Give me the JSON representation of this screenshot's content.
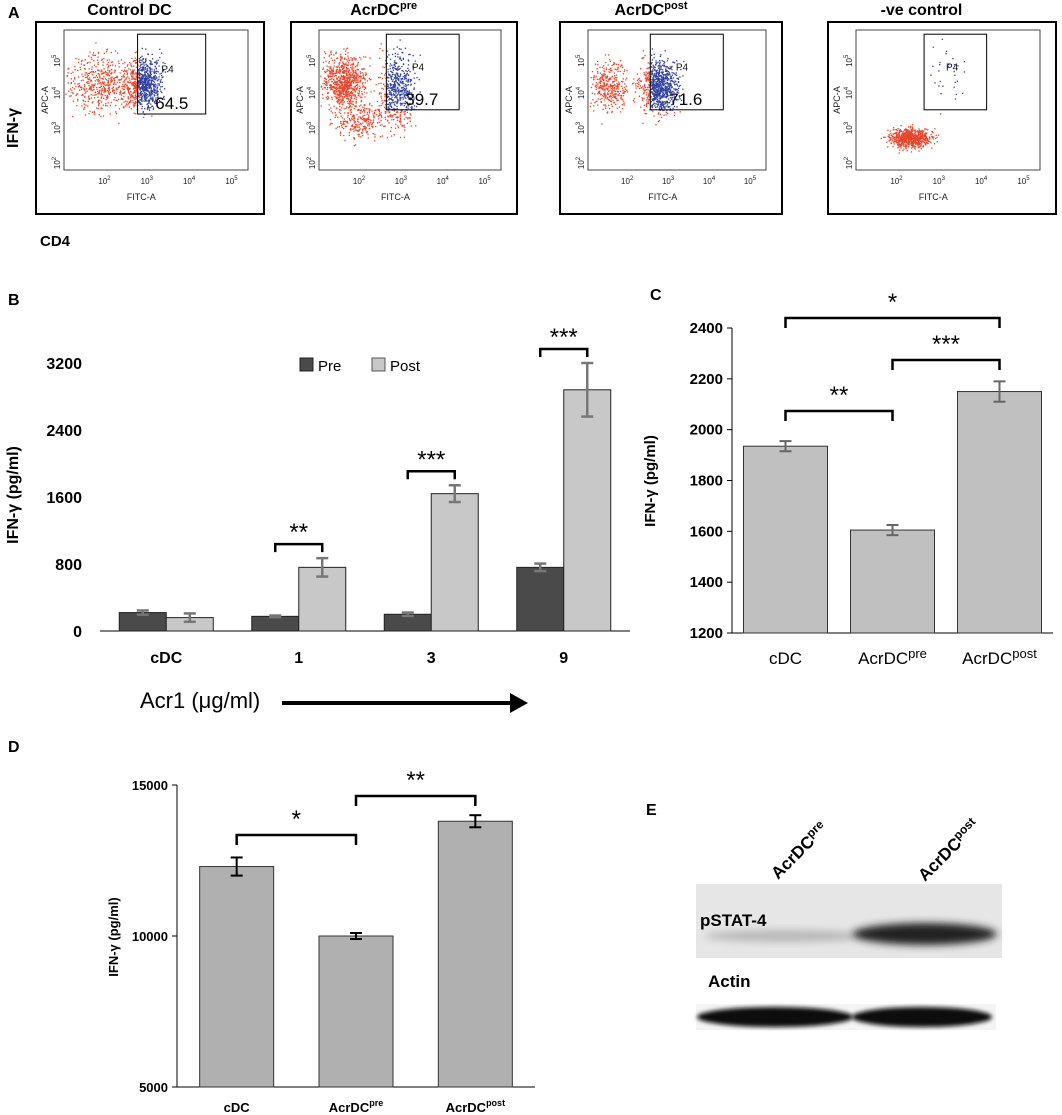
{
  "panel_labels": {
    "a": "A",
    "b": "B",
    "c": "C",
    "d": "D",
    "e": "E"
  },
  "flow": {
    "y_label": "IFN-γ",
    "x_label": "CD4",
    "plots": [
      {
        "title": "Control DC",
        "title_sup": "",
        "gate": "P4",
        "value": "64.5"
      },
      {
        "title": "AcrDC",
        "title_sup": "pre",
        "gate": "P4",
        "value": "39.7"
      },
      {
        "title": "AcrDC",
        "title_sup": "post",
        "gate": "P4",
        "value": "71.6"
      },
      {
        "title": "-ve control",
        "title_sup": "",
        "gate": "P4",
        "value": ""
      }
    ],
    "axis_x": "FITC-A",
    "axis_y": "APC-A",
    "ticks": [
      "10",
      "10",
      "10",
      "10"
    ],
    "tick_exps": [
      "2",
      "3",
      "4",
      "5"
    ],
    "colors": {
      "outside": "#e8452a",
      "inside": "#2f3fa0"
    }
  },
  "chart_data": [
    {
      "id": "B",
      "type": "bar",
      "title": "",
      "xlabel": "Acr1 (μg/ml)",
      "ylabel": "IFN-γ (pg/ml)",
      "categories": [
        "cDC",
        "1",
        "3",
        "9"
      ],
      "series": [
        {
          "name": "Pre",
          "color": "#4a4a4a",
          "values": [
            220,
            175,
            200,
            760
          ],
          "errors": [
            25,
            10,
            20,
            45
          ]
        },
        {
          "name": "Post",
          "color": "#c8c8c8",
          "values": [
            160,
            760,
            1640,
            2880
          ],
          "errors": [
            50,
            110,
            100,
            320
          ]
        }
      ],
      "ylim": [
        0,
        3200
      ],
      "yticks": [
        "0",
        "800",
        "1600",
        "2400",
        "3200"
      ],
      "significance": [
        "",
        "**",
        "***",
        "***"
      ],
      "legend_position": "top"
    },
    {
      "id": "C",
      "type": "bar",
      "title": "",
      "xlabel": "",
      "ylabel": "IFN-γ (pg/ml)",
      "categories": [
        "cDC",
        "AcrDC",
        "AcrDC"
      ],
      "category_sups": [
        "",
        "pre",
        "post"
      ],
      "values": [
        1935,
        1605,
        2150
      ],
      "errors": [
        20,
        20,
        40
      ],
      "color": "#c0c0c0",
      "ylim": [
        1200,
        2400
      ],
      "yticks": [
        "1200",
        "1400",
        "1600",
        "1800",
        "2000",
        "2200",
        "2400"
      ],
      "comparisons": [
        {
          "from": 0,
          "to": 1,
          "label": "**"
        },
        {
          "from": 1,
          "to": 2,
          "label": "***"
        },
        {
          "from": 0,
          "to": 2,
          "label": "*"
        }
      ]
    },
    {
      "id": "D",
      "type": "bar",
      "title": "",
      "xlabel": "",
      "ylabel": "IFN-γ (pg/ml)",
      "categories": [
        "cDC",
        "AcrDC",
        "AcrDC"
      ],
      "category_sups": [
        "",
        "pre",
        "post"
      ],
      "values": [
        12300,
        10000,
        13800
      ],
      "errors": [
        300,
        100,
        200
      ],
      "color": "#b0b0b0",
      "ylim": [
        5000,
        15000
      ],
      "yticks": [
        "5000",
        "10000",
        "15000"
      ],
      "comparisons": [
        {
          "from": 0,
          "to": 1,
          "label": "*"
        },
        {
          "from": 1,
          "to": 2,
          "label": "**"
        }
      ]
    }
  ],
  "western": {
    "lanes": [
      {
        "label": "AcrDC",
        "sup": "pre"
      },
      {
        "label": "AcrDC",
        "sup": "post"
      }
    ],
    "bands": [
      "pSTAT-4",
      "Actin"
    ]
  }
}
